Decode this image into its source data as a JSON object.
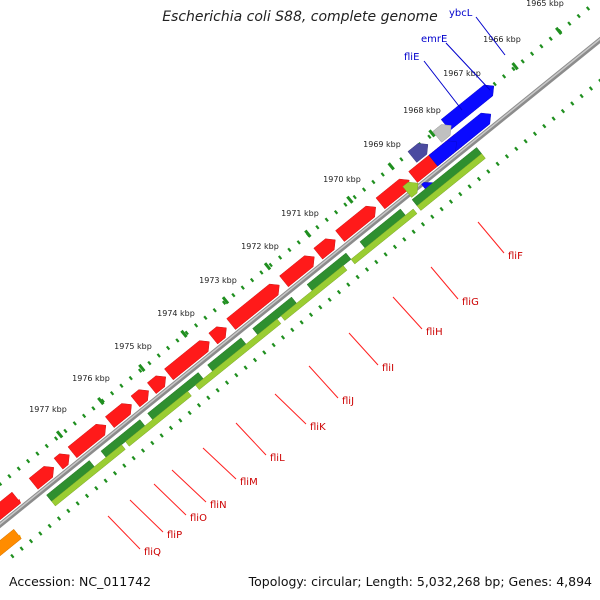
{
  "title": "Escherichia coli S88, complete genome",
  "footer": {
    "accession": "Accession: NC_011742",
    "summary": "Topology: circular; Length: 5,032,268 bp; Genes: 4,894"
  },
  "colors": {
    "backbone": "#8c8c8c",
    "tick": "#1f8f1f",
    "gene_forward": "#ff1a1a",
    "gene_reverse": "#0a0aff",
    "gene_other": "#c0c0c0",
    "gene_dark": "#4b4ba0",
    "gene_orange": "#ff8c00",
    "cds_dark": "#2f8f2f",
    "cds_light": "#9acd32",
    "label_red": "#cc0000",
    "label_blue": "#0000cc"
  },
  "kbp_labels": [
    "1965 kbp",
    "1966 kbp",
    "1967 kbp",
    "1968 kbp",
    "1969 kbp",
    "1970 kbp",
    "1971 kbp",
    "1972 kbp",
    "1973 kbp",
    "1974 kbp",
    "1975 kbp",
    "1976 kbp",
    "1977 kbp"
  ],
  "red_labels": [
    "fliF",
    "fliG",
    "fliH",
    "fliI",
    "fliJ",
    "fliK",
    "fliL",
    "fliM",
    "fliN",
    "fliO",
    "fliP",
    "fliQ"
  ],
  "blue_labels": [
    "ybcL",
    "emrE",
    "fliE"
  ]
}
